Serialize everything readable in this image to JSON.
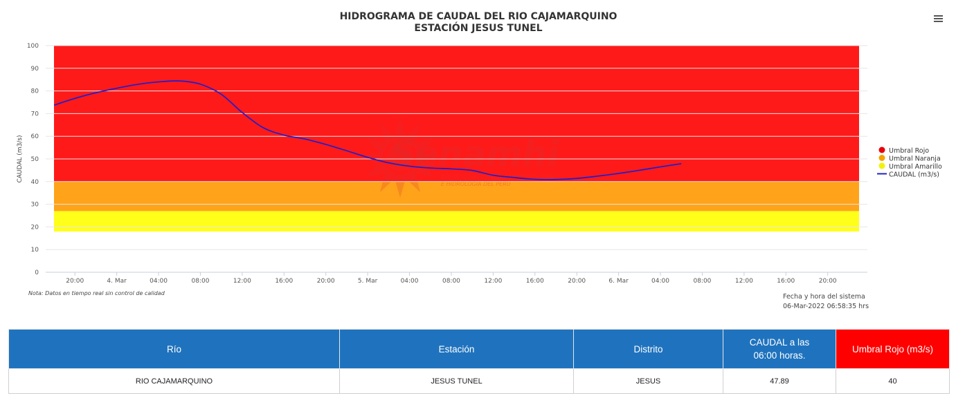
{
  "chart_data": {
    "type": "line",
    "title": "HIDROGRAMA DE CAUDAL DEL RIO CAJAMARQUINO",
    "subtitle": "ESTACIÓN JESUS TUNEL",
    "ylabel": "CAUDAL (m3/s)",
    "ylim": [
      0,
      100
    ],
    "yticks": [
      0,
      10,
      20,
      30,
      40,
      50,
      60,
      70,
      80,
      90,
      100
    ],
    "xlim_hours": [
      -6,
      87
    ],
    "x_ticks": [
      {
        "h": -4,
        "label": "20:00"
      },
      {
        "h": 0,
        "label": "4. Mar"
      },
      {
        "h": 4,
        "label": "04:00"
      },
      {
        "h": 8,
        "label": "08:00"
      },
      {
        "h": 12,
        "label": "12:00"
      },
      {
        "h": 16,
        "label": "16:00"
      },
      {
        "h": 20,
        "label": "20:00"
      },
      {
        "h": 24,
        "label": "5. Mar"
      },
      {
        "h": 28,
        "label": "04:00"
      },
      {
        "h": 32,
        "label": "08:00"
      },
      {
        "h": 36,
        "label": "12:00"
      },
      {
        "h": 40,
        "label": "16:00"
      },
      {
        "h": 44,
        "label": "20:00"
      },
      {
        "h": 48,
        "label": "6. Mar"
      },
      {
        "h": 52,
        "label": "04:00"
      },
      {
        "h": 56,
        "label": "08:00"
      },
      {
        "h": 60,
        "label": "12:00"
      },
      {
        "h": 64,
        "label": "16:00"
      },
      {
        "h": 68,
        "label": "20:00"
      }
    ],
    "bands": [
      {
        "name": "Umbral Amarillo",
        "from": 18,
        "to": 27,
        "color": "#ffff1a"
      },
      {
        "name": "Umbral Naranja",
        "from": 27,
        "to": 40,
        "color": "#ffa31a"
      },
      {
        "name": "Umbral Rojo",
        "from": 40,
        "to": 100,
        "color": "#ff1a1a"
      }
    ],
    "band_x_range_hours": [
      -6,
      71
    ],
    "series": [
      {
        "name": "CAUDAL (m3/s)",
        "color": "#2020c8",
        "x_hours": [
          -6,
          -4,
          -2,
          0,
          2,
          4,
          6,
          8,
          10,
          12,
          14,
          16,
          18,
          20,
          22,
          24,
          26,
          28,
          30,
          32,
          34,
          36,
          38,
          40,
          42,
          44,
          46,
          48,
          50,
          52,
          54
        ],
        "values": [
          73.7,
          76.7,
          79.2,
          81.2,
          82.9,
          84.0,
          84.4,
          83.0,
          78.5,
          70.5,
          63.8,
          60.5,
          58.8,
          56.4,
          53.6,
          50.7,
          48.3,
          46.8,
          46.0,
          45.6,
          44.9,
          42.8,
          41.8,
          41.0,
          40.9,
          41.4,
          42.4,
          43.6,
          45.0,
          46.5,
          47.9
        ]
      }
    ],
    "legend": {
      "placement": "right",
      "items": [
        {
          "label": "Umbral Rojo",
          "color": "#e8000b",
          "symbol": "circle"
        },
        {
          "label": "Umbral Naranja",
          "color": "#f5a300",
          "symbol": "circle"
        },
        {
          "label": "Umbral Amarillo",
          "color": "#f2f20a",
          "symbol": "circle"
        },
        {
          "label": "CAUDAL (m3/s)",
          "color": "#2020c8",
          "symbol": "line"
        }
      ]
    },
    "note": "Nota: Datos en tiempo real sin control de calidad",
    "system_time_label": "Fecha y hora del sistema",
    "system_time": "06-Mar-2022 06:58:35 hrs",
    "watermark": {
      "brand": "Senamhi",
      "line1": "SERVICIO NACIONAL DE METEOROLOGÍA",
      "line2": "E HIDROLOGÍA DEL PERÚ"
    }
  },
  "menu": {
    "icon": "hamburger-menu-icon"
  },
  "table": {
    "headers": {
      "rio": "Río",
      "estacion": "Estación",
      "distrito": "Distrito",
      "caudal_line1": "CAUDAL a las",
      "caudal_line2": "06:00 horas.",
      "umbral": "Umbral Rojo (m3/s)"
    },
    "header_colors": {
      "default": "#1f73be",
      "umbral": "#ff0000"
    },
    "row": {
      "rio": "RIO CAJAMARQUINO",
      "estacion": "JESUS TUNEL",
      "distrito": "JESUS",
      "caudal": "47.89",
      "umbral": "40"
    }
  }
}
